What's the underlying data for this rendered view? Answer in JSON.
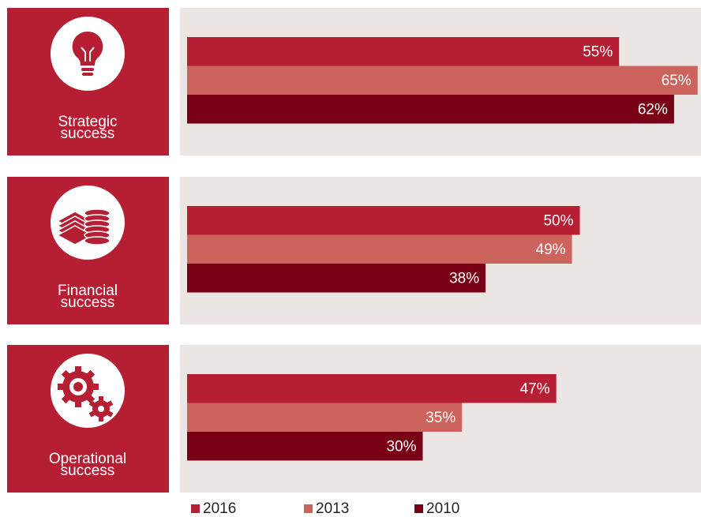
{
  "chart_data": {
    "type": "bar",
    "orientation": "horizontal",
    "categories": [
      "Strategic success",
      "Financial success",
      "Operational success"
    ],
    "series": [
      {
        "name": "2016",
        "color": "#b61f33",
        "values": [
          55,
          50,
          47
        ],
        "value_labels": [
          "55%",
          "50%",
          "47%"
        ]
      },
      {
        "name": "2013",
        "color": "#cd635d",
        "values": [
          65,
          49,
          35
        ],
        "value_labels": [
          "65%",
          "49%",
          "35%"
        ]
      },
      {
        "name": "2010",
        "color": "#7a0016",
        "values": [
          62,
          38,
          30
        ],
        "value_labels": [
          "62%",
          "38%",
          "30%"
        ]
      }
    ]
  }
}
